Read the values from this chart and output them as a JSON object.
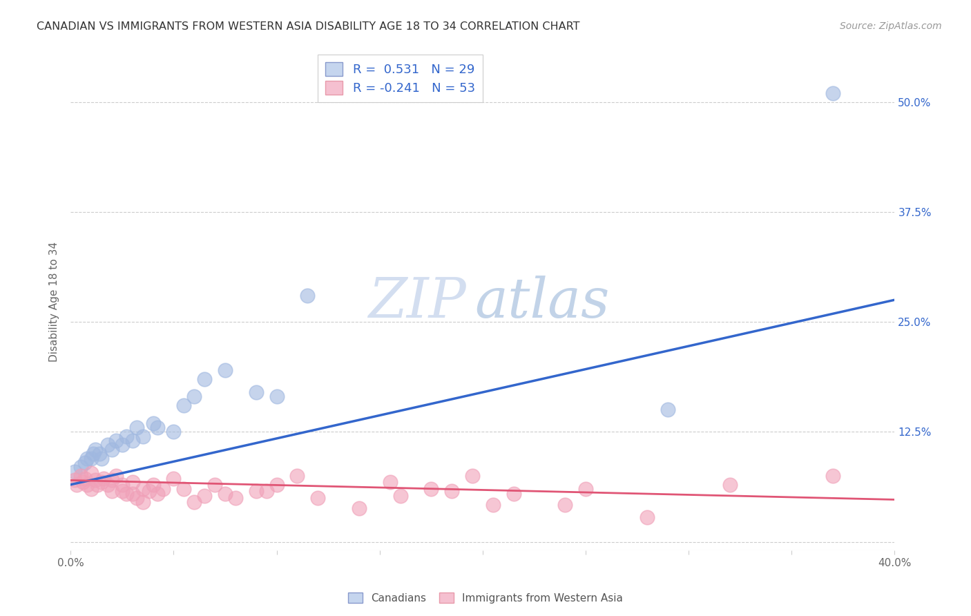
{
  "title": "CANADIAN VS IMMIGRANTS FROM WESTERN ASIA DISABILITY AGE 18 TO 34 CORRELATION CHART",
  "source": "Source: ZipAtlas.com",
  "ylabel": "Disability Age 18 to 34",
  "xlim": [
    0,
    0.4
  ],
  "ylim": [
    -0.01,
    0.555
  ],
  "xticks": [
    0.0,
    0.05,
    0.1,
    0.15,
    0.2,
    0.25,
    0.3,
    0.35,
    0.4
  ],
  "yticks": [
    0.0,
    0.125,
    0.25,
    0.375,
    0.5
  ],
  "blue_R": 0.531,
  "blue_N": 29,
  "pink_R": -0.241,
  "pink_N": 53,
  "blue_color": "#a0b8e0",
  "pink_color": "#f0a0b8",
  "blue_line_color": "#3366cc",
  "pink_line_color": "#e05575",
  "watermark_zip": "ZIP",
  "watermark_atlas": "atlas",
  "legend_label_blue": "Canadians",
  "legend_label_pink": "Immigrants from Western Asia",
  "blue_scatter_x": [
    0.002,
    0.005,
    0.007,
    0.008,
    0.01,
    0.011,
    0.012,
    0.014,
    0.015,
    0.018,
    0.02,
    0.022,
    0.025,
    0.027,
    0.03,
    0.032,
    0.035,
    0.04,
    0.042,
    0.05,
    0.055,
    0.06,
    0.065,
    0.075,
    0.09,
    0.1,
    0.115,
    0.29,
    0.37
  ],
  "blue_scatter_y": [
    0.08,
    0.085,
    0.09,
    0.095,
    0.095,
    0.1,
    0.105,
    0.1,
    0.095,
    0.11,
    0.105,
    0.115,
    0.11,
    0.12,
    0.115,
    0.13,
    0.12,
    0.135,
    0.13,
    0.125,
    0.155,
    0.165,
    0.185,
    0.195,
    0.17,
    0.165,
    0.28,
    0.15,
    0.51
  ],
  "pink_scatter_x": [
    0.002,
    0.003,
    0.005,
    0.006,
    0.007,
    0.008,
    0.01,
    0.01,
    0.012,
    0.013,
    0.015,
    0.016,
    0.018,
    0.02,
    0.02,
    0.022,
    0.025,
    0.025,
    0.027,
    0.03,
    0.03,
    0.032,
    0.035,
    0.035,
    0.038,
    0.04,
    0.042,
    0.045,
    0.05,
    0.055,
    0.06,
    0.065,
    0.07,
    0.075,
    0.08,
    0.09,
    0.095,
    0.1,
    0.11,
    0.12,
    0.14,
    0.155,
    0.16,
    0.175,
    0.185,
    0.195,
    0.205,
    0.215,
    0.24,
    0.25,
    0.28,
    0.32,
    0.37
  ],
  "pink_scatter_y": [
    0.07,
    0.065,
    0.075,
    0.068,
    0.072,
    0.065,
    0.078,
    0.06,
    0.07,
    0.065,
    0.068,
    0.072,
    0.065,
    0.07,
    0.058,
    0.075,
    0.065,
    0.058,
    0.055,
    0.068,
    0.055,
    0.05,
    0.06,
    0.045,
    0.058,
    0.065,
    0.055,
    0.06,
    0.072,
    0.06,
    0.045,
    0.052,
    0.065,
    0.055,
    0.05,
    0.058,
    0.058,
    0.065,
    0.075,
    0.05,
    0.038,
    0.068,
    0.052,
    0.06,
    0.058,
    0.075,
    0.042,
    0.055,
    0.042,
    0.06,
    0.028,
    0.065,
    0.075
  ],
  "blue_trend_x": [
    0.0,
    0.4
  ],
  "blue_trend_y": [
    0.065,
    0.275
  ],
  "pink_trend_x": [
    0.0,
    0.4
  ],
  "pink_trend_y": [
    0.07,
    0.048
  ],
  "background_color": "#ffffff",
  "grid_color": "#cccccc"
}
